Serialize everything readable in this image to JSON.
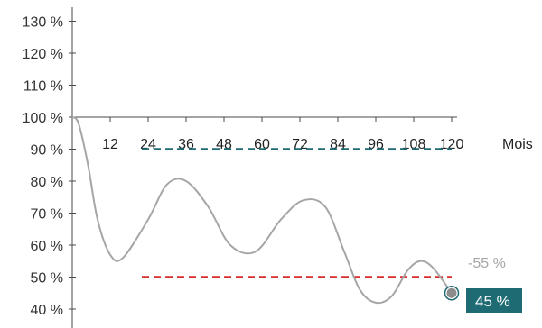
{
  "chart_data": {
    "type": "line",
    "xlabel": "Mois",
    "ylabel": "",
    "x_ticks": [
      12,
      24,
      36,
      48,
      60,
      72,
      84,
      96,
      108,
      120
    ],
    "y_ticks": [
      "130 %",
      "120 %",
      "110 %",
      "100 %",
      "90 %",
      "80 %",
      "70 %",
      "60 %",
      "50 %",
      "40 %"
    ],
    "ylim": [
      37,
      133
    ],
    "xlim": [
      0,
      120
    ],
    "grid": false,
    "series": [
      {
        "color": "#a6a6a6",
        "x": [
          0,
          2,
          5,
          8,
          12,
          16,
          24,
          30,
          36,
          43,
          50,
          58,
          66,
          73,
          80,
          86,
          91,
          96,
          101,
          106,
          110,
          114,
          120
        ],
        "y": [
          100,
          98,
          85,
          68,
          57,
          56,
          68,
          79,
          80,
          72,
          60,
          58,
          68,
          74,
          72,
          58,
          46,
          42,
          44,
          52,
          55,
          53,
          45
        ]
      }
    ],
    "reference_lines": [
      {
        "y": 90,
        "color": "#1e6b74",
        "x_start": 22,
        "x_end": 120
      },
      {
        "y": 50,
        "color": "#d92c2c",
        "x_start": 22,
        "x_end": 120
      }
    ],
    "highlighted_ticks": [
      {
        "label": "90 %",
        "color": "#1e6b74"
      },
      {
        "label": "50 %",
        "color": "#d92c2c"
      }
    ],
    "annotations": [
      {
        "text": "-55 %",
        "color": "#a6a6a6"
      },
      {
        "text": "45 %",
        "background": "#1e6b74",
        "color": "#ffffff"
      }
    ],
    "end_marker": {
      "x": 120,
      "y": 45,
      "fill": "#8c8c8c",
      "stroke": "#1e6b74"
    }
  }
}
